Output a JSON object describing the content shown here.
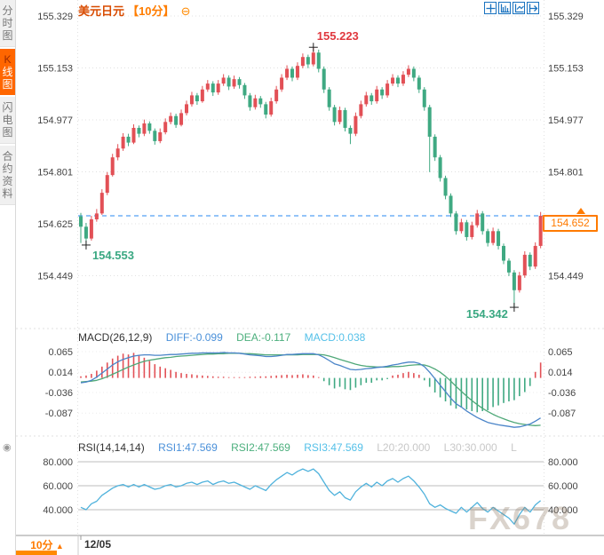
{
  "title": {
    "symbol": "美元日元",
    "timeframe": "【10分】",
    "collapse_icon": "⊖"
  },
  "sidebar": {
    "tabs": [
      {
        "label": "分时图",
        "active": false
      },
      {
        "label": "K线图",
        "active": true
      },
      {
        "label": "闪电图",
        "active": false
      },
      {
        "label": "合约资料",
        "active": false
      }
    ]
  },
  "toolbar": {
    "icons": [
      "move-crosshair-icon",
      "axis-scale-icon",
      "axis-forward-icon",
      "shift-right-icon"
    ]
  },
  "indicators": {
    "macd": {
      "name": "MACD(26,12,9)",
      "diff": "DIFF:-0.099",
      "dea": "DEA:-0.117",
      "macd": "MACD:0.038"
    },
    "rsi": {
      "name": "RSI(14,14,14)",
      "rsi1": "RSI1:47.569",
      "rsi2": "RSI2:47.569",
      "rsi3": "RSI3:47.569",
      "l20": "L20:20.000",
      "l30": "L30:30.000",
      "l": "L"
    }
  },
  "bottom_bar": {
    "timeframe": "10分",
    "timeframe_arrow": "▲",
    "date": "12/05"
  },
  "watermark": "FX678",
  "colors": {
    "up": "#e25056",
    "down": "#3fa982",
    "accent": "#ff6600",
    "price_line": "#2a8af0",
    "diff_line": "#4a84c8",
    "dea_line": "#4fa878",
    "rsi_line": "#4fb2dc",
    "grid": "#e0e0e0",
    "rsi_grid": "#bcbcbc",
    "axis_text": "#444",
    "high_label": "#e0383e",
    "low_label": "#3aa882"
  },
  "chart_data": [
    {
      "type": "candlestick",
      "title": "美元日元 10分",
      "y_ticks": [
        155.329,
        155.153,
        154.977,
        154.801,
        154.625,
        154.449
      ],
      "right_hidden_tick_index": 4,
      "current_price": 154.652,
      "current_price_label": "154.652",
      "annotations": {
        "high": "155.223",
        "low_start": "154.553",
        "low_end": "154.342"
      },
      "candles": [
        [
          154.65,
          154.662,
          154.56,
          154.615
        ],
        [
          154.615,
          154.628,
          154.553,
          154.575
        ],
        [
          154.575,
          154.652,
          154.568,
          154.64
        ],
        [
          154.64,
          154.675,
          154.632,
          154.66
        ],
        [
          154.66,
          154.742,
          154.655,
          154.73
        ],
        [
          154.73,
          154.8,
          154.722,
          154.79
        ],
        [
          154.79,
          154.862,
          154.785,
          154.85
        ],
        [
          154.85,
          154.895,
          154.84,
          154.88
        ],
        [
          154.88,
          154.932,
          154.872,
          154.92
        ],
        [
          154.92,
          154.93,
          154.888,
          154.9
        ],
        [
          154.9,
          154.962,
          154.895,
          154.95
        ],
        [
          154.95,
          154.958,
          154.918,
          154.93
        ],
        [
          154.93,
          154.978,
          154.922,
          154.965
        ],
        [
          154.965,
          154.972,
          154.93,
          154.94
        ],
        [
          154.94,
          154.948,
          154.893,
          154.905
        ],
        [
          154.905,
          154.948,
          154.898,
          154.935
        ],
        [
          154.935,
          154.982,
          154.928,
          154.97
        ],
        [
          154.97,
          155.002,
          154.962,
          154.99
        ],
        [
          154.99,
          154.998,
          154.95,
          154.96
        ],
        [
          154.96,
          155.012,
          154.955,
          155.0
        ],
        [
          155.0,
          155.042,
          154.992,
          155.03
        ],
        [
          155.03,
          155.072,
          155.022,
          155.06
        ],
        [
          155.06,
          155.068,
          155.028,
          155.04
        ],
        [
          155.04,
          155.092,
          155.035,
          155.08
        ],
        [
          155.08,
          155.112,
          155.072,
          155.1
        ],
        [
          155.1,
          155.108,
          155.058,
          155.07
        ],
        [
          155.07,
          155.112,
          155.062,
          155.1
        ],
        [
          155.1,
          155.132,
          155.092,
          155.12
        ],
        [
          155.12,
          155.128,
          155.078,
          155.09
        ],
        [
          155.09,
          155.127,
          155.082,
          155.115
        ],
        [
          155.115,
          155.122,
          155.083,
          155.095
        ],
        [
          155.095,
          155.102,
          155.048,
          155.06
        ],
        [
          155.06,
          155.068,
          155.008,
          155.02
        ],
        [
          155.02,
          155.062,
          155.012,
          155.05
        ],
        [
          155.05,
          155.058,
          155.018,
          155.03
        ],
        [
          155.03,
          155.038,
          154.982,
          154.995
        ],
        [
          154.995,
          155.052,
          154.988,
          155.04
        ],
        [
          155.04,
          155.092,
          155.032,
          155.08
        ],
        [
          155.08,
          155.132,
          155.072,
          155.12
        ],
        [
          155.12,
          155.162,
          155.112,
          155.15
        ],
        [
          155.15,
          155.158,
          155.108,
          155.12
        ],
        [
          155.12,
          155.172,
          155.112,
          155.16
        ],
        [
          155.16,
          155.202,
          155.152,
          155.19
        ],
        [
          155.19,
          155.198,
          155.152,
          155.165
        ],
        [
          155.165,
          155.223,
          155.158,
          155.205
        ],
        [
          155.205,
          155.215,
          155.138,
          155.15
        ],
        [
          155.15,
          155.158,
          155.068,
          155.08
        ],
        [
          155.08,
          155.088,
          155.008,
          155.02
        ],
        [
          155.02,
          155.028,
          154.958,
          154.97
        ],
        [
          154.97,
          155.022,
          154.962,
          155.01
        ],
        [
          155.01,
          155.018,
          154.938,
          154.95
        ],
        [
          154.95,
          154.958,
          154.895,
          154.93
        ],
        [
          154.93,
          155.002,
          154.922,
          154.99
        ],
        [
          154.99,
          155.042,
          154.982,
          155.03
        ],
        [
          155.03,
          155.072,
          155.022,
          155.06
        ],
        [
          155.06,
          155.068,
          155.028,
          155.04
        ],
        [
          155.04,
          155.092,
          155.032,
          155.08
        ],
        [
          155.08,
          155.088,
          155.048,
          155.06
        ],
        [
          155.06,
          155.112,
          155.052,
          155.1
        ],
        [
          155.1,
          155.132,
          155.092,
          155.12
        ],
        [
          155.12,
          155.128,
          155.088,
          155.1
        ],
        [
          155.1,
          155.142,
          155.092,
          155.13
        ],
        [
          155.13,
          155.162,
          155.122,
          155.15
        ],
        [
          155.15,
          155.158,
          155.108,
          155.12
        ],
        [
          155.12,
          155.128,
          155.068,
          155.08
        ],
        [
          155.08,
          155.088,
          155.008,
          155.02
        ],
        [
          155.02,
          155.028,
          154.8,
          154.92
        ],
        [
          154.92,
          154.928,
          154.838,
          154.85
        ],
        [
          154.85,
          154.858,
          154.768,
          154.78
        ],
        [
          154.78,
          154.788,
          154.708,
          154.72
        ],
        [
          154.72,
          154.728,
          154.648,
          154.66
        ],
        [
          154.66,
          154.668,
          154.588,
          154.6
        ],
        [
          154.6,
          154.642,
          154.592,
          154.63
        ],
        [
          154.63,
          154.638,
          154.568,
          154.58
        ],
        [
          154.58,
          154.632,
          154.572,
          154.62
        ],
        [
          154.62,
          154.672,
          154.612,
          154.66
        ],
        [
          154.66,
          154.668,
          154.588,
          154.6
        ],
        [
          154.6,
          154.608,
          154.548,
          154.56
        ],
        [
          154.56,
          154.612,
          154.552,
          154.6
        ],
        [
          154.6,
          154.608,
          154.538,
          154.55
        ],
        [
          154.55,
          154.558,
          154.488,
          154.5
        ],
        [
          154.5,
          154.508,
          154.448,
          154.46
        ],
        [
          154.46,
          154.468,
          154.342,
          154.4
        ],
        [
          154.4,
          154.462,
          154.392,
          154.45
        ],
        [
          154.45,
          154.532,
          154.442,
          154.52
        ],
        [
          154.52,
          154.528,
          154.468,
          154.48
        ],
        [
          154.48,
          154.562,
          154.472,
          154.55
        ],
        [
          154.55,
          154.665,
          154.542,
          154.652
        ]
      ]
    },
    {
      "type": "bar",
      "name": "MACD(26,12,9)",
      "y_ticks": [
        0.065,
        0.014,
        -0.036,
        -0.087
      ],
      "hist": [
        0.004,
        0.006,
        0.01,
        0.018,
        0.028,
        0.038,
        0.048,
        0.055,
        0.06,
        0.058,
        0.062,
        0.055,
        0.05,
        0.042,
        0.034,
        0.028,
        0.024,
        0.02,
        0.015,
        0.012,
        0.01,
        0.009,
        0.007,
        0.006,
        0.005,
        0.004,
        0.003,
        0.003,
        0.002,
        0.002,
        0.002,
        0.002,
        0.003,
        0.003,
        0.004,
        0.004,
        0.005,
        0.006,
        0.007,
        0.008,
        0.007,
        0.008,
        0.009,
        0.007,
        0.006,
        0.002,
        -0.008,
        -0.018,
        -0.026,
        -0.022,
        -0.028,
        -0.03,
        -0.024,
        -0.018,
        -0.012,
        -0.012,
        -0.006,
        -0.006,
        -0.003,
        0.006,
        0.008,
        0.012,
        0.015,
        0.012,
        0.008,
        -0.006,
        -0.022,
        -0.036,
        -0.048,
        -0.058,
        -0.068,
        -0.076,
        -0.072,
        -0.078,
        -0.082,
        -0.085,
        -0.082,
        -0.08,
        -0.072,
        -0.068,
        -0.062,
        -0.058,
        -0.055,
        -0.045,
        -0.035,
        -0.02,
        0.015,
        0.038
      ],
      "diff": [
        -0.012,
        -0.01,
        -0.006,
        0.002,
        0.012,
        0.022,
        0.032,
        0.04,
        0.046,
        0.05,
        0.054,
        0.056,
        0.057,
        0.057,
        0.056,
        0.056,
        0.057,
        0.058,
        0.058,
        0.059,
        0.06,
        0.061,
        0.061,
        0.062,
        0.062,
        0.062,
        0.062,
        0.063,
        0.062,
        0.062,
        0.061,
        0.059,
        0.057,
        0.056,
        0.055,
        0.053,
        0.053,
        0.054,
        0.056,
        0.058,
        0.058,
        0.059,
        0.06,
        0.06,
        0.06,
        0.057,
        0.051,
        0.043,
        0.035,
        0.031,
        0.026,
        0.021,
        0.02,
        0.021,
        0.023,
        0.024,
        0.026,
        0.027,
        0.029,
        0.032,
        0.034,
        0.037,
        0.039,
        0.039,
        0.036,
        0.028,
        0.014,
        -0.002,
        -0.018,
        -0.034,
        -0.05,
        -0.064,
        -0.072,
        -0.082,
        -0.09,
        -0.098,
        -0.104,
        -0.11,
        -0.113,
        -0.116,
        -0.118,
        -0.12,
        -0.122,
        -0.121,
        -0.118,
        -0.114,
        -0.107,
        -0.099
      ],
      "dea": [
        -0.01,
        -0.009,
        -0.008,
        -0.006,
        -0.002,
        0.003,
        0.009,
        0.015,
        0.021,
        0.027,
        0.032,
        0.037,
        0.041,
        0.044,
        0.046,
        0.048,
        0.05,
        0.051,
        0.053,
        0.054,
        0.055,
        0.056,
        0.057,
        0.058,
        0.059,
        0.059,
        0.06,
        0.06,
        0.061,
        0.061,
        0.061,
        0.06,
        0.06,
        0.059,
        0.058,
        0.057,
        0.057,
        0.057,
        0.057,
        0.057,
        0.057,
        0.057,
        0.058,
        0.058,
        0.058,
        0.058,
        0.057,
        0.054,
        0.05,
        0.046,
        0.042,
        0.038,
        0.034,
        0.031,
        0.029,
        0.028,
        0.027,
        0.027,
        0.027,
        0.028,
        0.028,
        0.029,
        0.031,
        0.032,
        0.033,
        0.032,
        0.028,
        0.022,
        0.014,
        0.004,
        -0.008,
        -0.021,
        -0.033,
        -0.045,
        -0.056,
        -0.066,
        -0.075,
        -0.083,
        -0.09,
        -0.096,
        -0.101,
        -0.106,
        -0.11,
        -0.113,
        -0.115,
        -0.117,
        -0.118,
        -0.117
      ]
    },
    {
      "type": "line",
      "name": "RSI(14,14,14)",
      "y_ticks": [
        80,
        60,
        40
      ],
      "values": [
        42,
        40,
        45,
        47,
        52,
        55,
        58,
        60,
        61,
        59,
        61,
        59,
        61,
        59,
        57,
        58,
        60,
        61,
        59,
        60,
        62,
        63,
        61,
        63,
        64,
        61,
        63,
        64,
        62,
        63,
        61,
        59,
        57,
        60,
        58,
        56,
        61,
        65,
        68,
        71,
        69,
        72,
        74,
        72,
        74,
        70,
        63,
        56,
        52,
        55,
        50,
        48,
        55,
        59,
        62,
        59,
        63,
        60,
        64,
        66,
        63,
        66,
        68,
        64,
        59,
        53,
        45,
        42,
        44,
        41,
        39,
        37,
        42,
        38,
        42,
        46,
        41,
        38,
        42,
        39,
        36,
        33,
        28,
        36,
        42,
        38,
        44,
        47.6
      ]
    }
  ]
}
